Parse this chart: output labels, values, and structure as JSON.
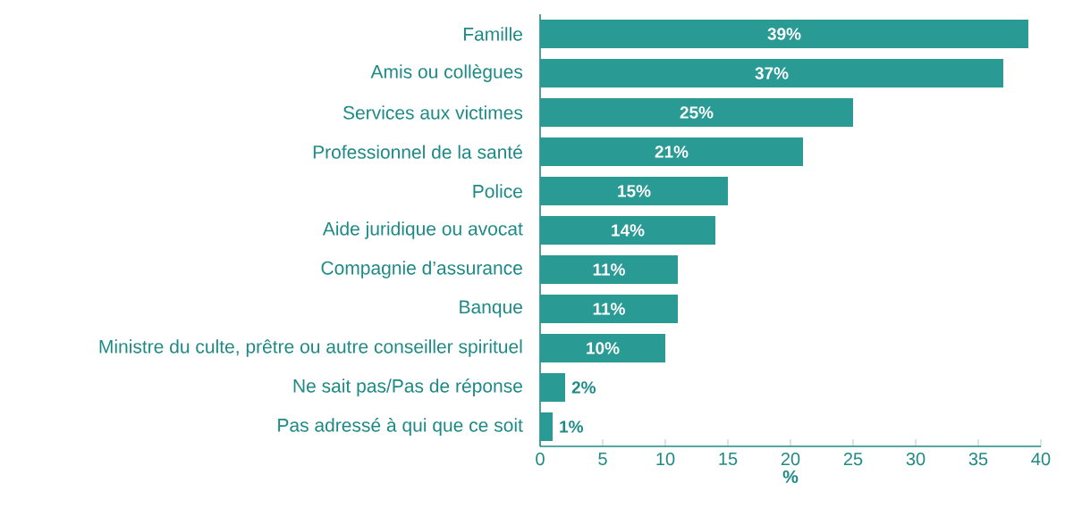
{
  "chart_data": {
    "type": "bar",
    "orientation": "horizontal",
    "xlabel": "%",
    "categories": [
      "Famille",
      "Amis ou collègues",
      "Services aux victimes",
      "Professionnel de la santé",
      "Police",
      "Aide juridique ou avocat",
      "Compagnie d’assurance",
      "Banque",
      "Ministre du culte, prêtre ou autre conseiller spirituel",
      "Ne sait pas/Pas de réponse",
      "Pas adressé à qui que ce soit"
    ],
    "values": [
      39,
      37,
      25,
      21,
      15,
      14,
      11,
      11,
      10,
      2,
      1
    ],
    "value_labels": [
      "39%",
      "37%",
      "25%",
      "21%",
      "15%",
      "14%",
      "11%",
      "11%",
      "10%",
      "2%",
      "1%"
    ],
    "color": "#2a9a95",
    "xlim": [
      0,
      40
    ],
    "xticks": [
      0,
      5,
      10,
      15,
      20,
      25,
      30,
      35,
      40
    ]
  }
}
